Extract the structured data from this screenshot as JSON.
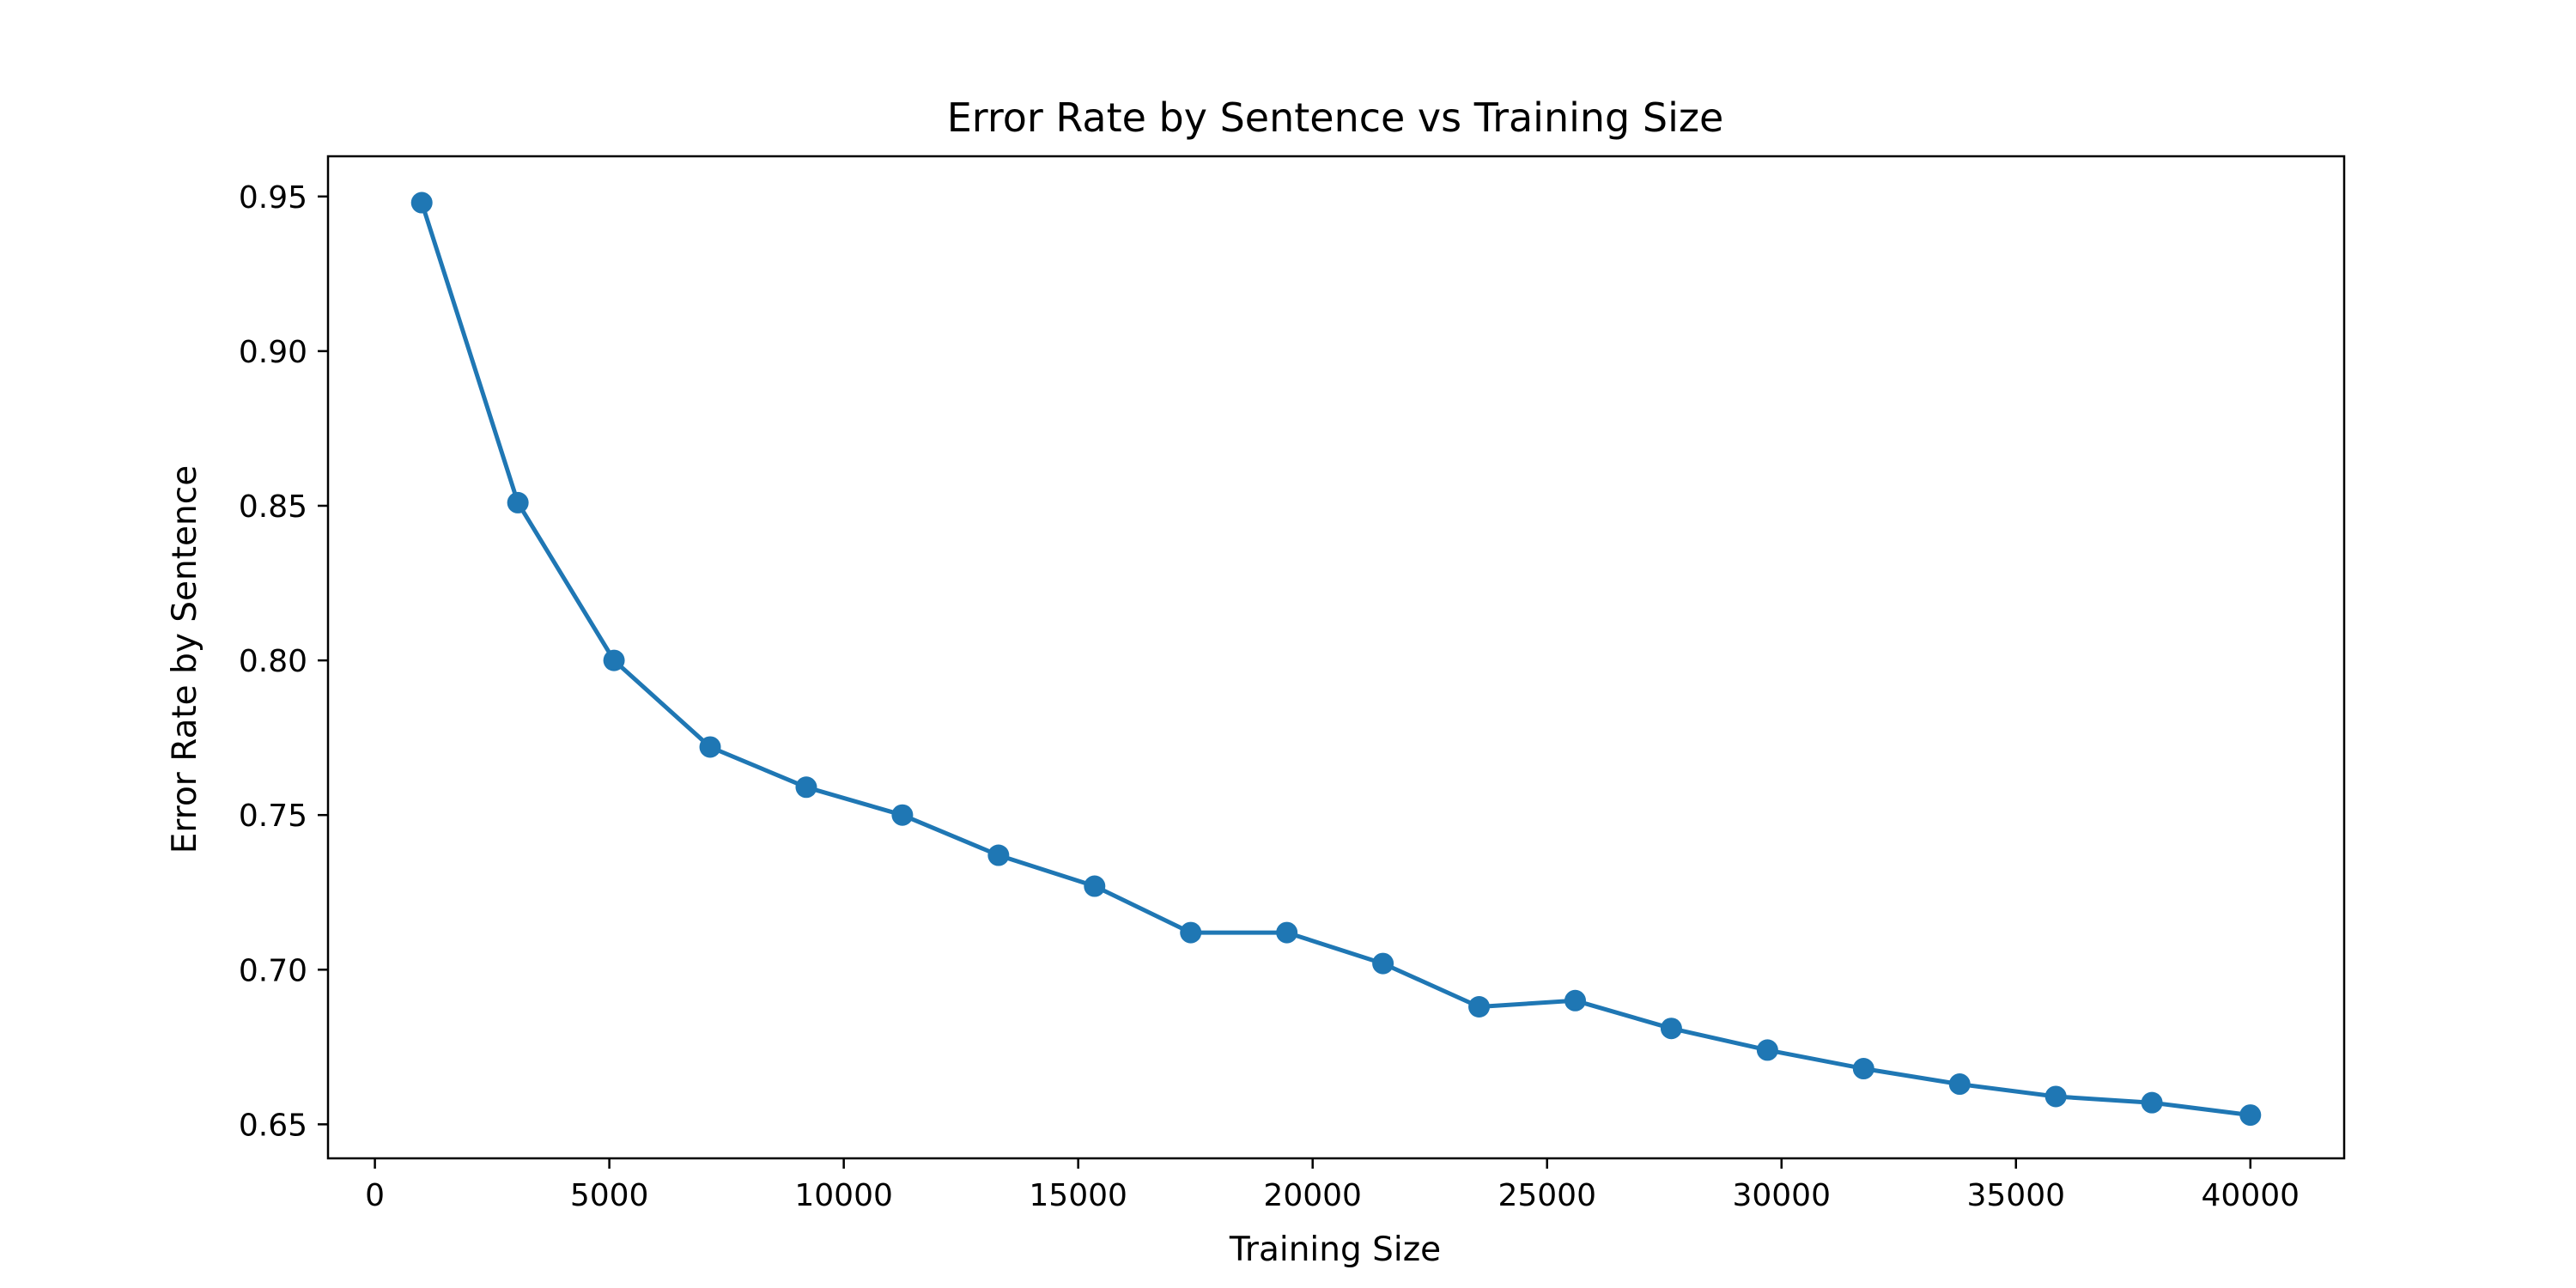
{
  "chart_data": {
    "type": "line",
    "title": "Error Rate by Sentence vs Training Size",
    "xlabel": "Training Size",
    "ylabel": "Error Rate by Sentence",
    "xlim": [
      -1000,
      42000
    ],
    "ylim": [
      0.639,
      0.963
    ],
    "xticks": [
      0,
      5000,
      10000,
      15000,
      20000,
      25000,
      30000,
      35000,
      40000
    ],
    "xtick_labels": [
      "0",
      "5000",
      "10000",
      "15000",
      "20000",
      "25000",
      "30000",
      "35000",
      "40000"
    ],
    "yticks": [
      0.65,
      0.7,
      0.75,
      0.8,
      0.85,
      0.9,
      0.95
    ],
    "ytick_labels": [
      "0.65",
      "0.70",
      "0.75",
      "0.80",
      "0.85",
      "0.90",
      "0.95"
    ],
    "grid": false,
    "marker": "circle",
    "color": "#1f77b4",
    "series": [
      {
        "x": [
          1000,
          3050,
          5100,
          7150,
          9200,
          11250,
          13300,
          15350,
          17400,
          19450,
          21500,
          23550,
          25600,
          27650,
          29700,
          31750,
          33800,
          35850,
          37900,
          40000
        ],
        "values": [
          0.948,
          0.851,
          0.8,
          0.772,
          0.759,
          0.75,
          0.737,
          0.727,
          0.712,
          0.712,
          0.702,
          0.688,
          0.69,
          0.681,
          0.674,
          0.668,
          0.663,
          0.659,
          0.657,
          0.653
        ]
      }
    ]
  }
}
